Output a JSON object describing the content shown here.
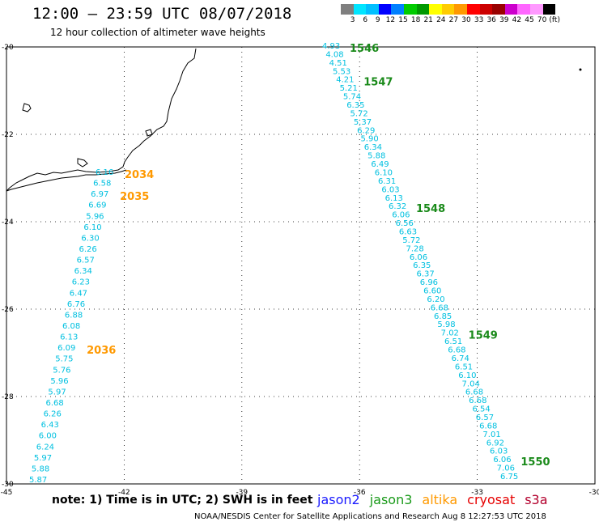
{
  "title": "12:00 – 23:59 UTC 08/07/2018",
  "subtitle": "12 hour collection of altimeter wave heights",
  "note": "note:  1) Time is in UTC;  2) SWH is in feet",
  "credit": "NOAA/NESDIS Center for Satellite Applications and Research     Aug  8 12:27:53 UTC 2018",
  "satellites": [
    {
      "name": "jason2",
      "color": "#1a1aff"
    },
    {
      "name": "jason3",
      "color": "#1a9a1a"
    },
    {
      "name": "altika",
      "color": "#ff9900"
    },
    {
      "name": "cryosat",
      "color": "#e60000"
    },
    {
      "name": "s3a",
      "color": "#b3002d"
    }
  ],
  "legend": {
    "colors": [
      "#7f7f7f",
      "#00e5ff",
      "#00bfff",
      "#0000ff",
      "#0080ff",
      "#00cc00",
      "#009900",
      "#ffff00",
      "#ffcc00",
      "#ff9900",
      "#ff0000",
      "#cc0000",
      "#990000",
      "#cc00cc",
      "#ff66ff",
      "#ff99ff",
      "#000000"
    ],
    "labels": [
      "3",
      "6",
      "9",
      "12",
      "15",
      "18",
      "21",
      "24",
      "27",
      "30",
      "33",
      "36",
      "39",
      "42",
      "45",
      "70",
      "(ft)"
    ]
  },
  "axes": {
    "lon_ticks": [
      -45,
      -42,
      -39,
      -36,
      -33,
      -30
    ],
    "lat_ticks": [
      -20,
      -22,
      -24,
      -26,
      -28,
      -30
    ]
  },
  "colors": {
    "swh_text": "#00c0e0",
    "jason3_label": "#1a8a1a",
    "altika_label": "#ff9900"
  },
  "tracks": {
    "west": {
      "satellite": "altika",
      "values": [
        "6.16",
        "6.58",
        "6.97",
        "6.69",
        "5.96",
        "6.10",
        "6.30",
        "6.26",
        "6.57",
        "6.34",
        "6.23",
        "6.47",
        "6.76",
        "6.88",
        "6.08",
        "6.13",
        "6.09",
        "5.75",
        "5.76",
        "5.96",
        "5.97",
        "6.68",
        "6.26",
        "6.43",
        "6.00",
        "6.24",
        "5.97",
        "5.88",
        "5.87"
      ],
      "times": [
        {
          "label": "2034",
          "after_index": 0
        },
        {
          "label": "2035",
          "after_index": 2
        },
        {
          "label": "2036",
          "after_index": 16
        }
      ]
    },
    "east": {
      "satellite": "jason3",
      "values": [
        "4.93",
        "4.08",
        "4.51",
        "5.53",
        "4.21",
        "5.21",
        "5.74",
        "6.35",
        "5.72",
        "5.37",
        "6.29",
        "5.90",
        "6.34",
        "5.88",
        "6.49",
        "6.10",
        "6.31",
        "6.03",
        "6.13",
        "6.32",
        "6.06",
        "6.56",
        "6.63",
        "5.72",
        "7.28",
        "6.06",
        "6.35",
        "6.37",
        "6.96",
        "6.60",
        "6.20",
        "6.68",
        "6.85",
        "5.98",
        "7.02",
        "6.51",
        "6.68",
        "6.74",
        "6.51",
        "6.10",
        "7.04",
        "6.68",
        "6.68",
        "6.54",
        "6.57",
        "6.68",
        "7.01",
        "6.92",
        "6.03",
        "6.06",
        "7.06",
        "6.75"
      ],
      "times": [
        {
          "label": "1546",
          "after_index": 0
        },
        {
          "label": "1547",
          "after_index": 4
        },
        {
          "label": "1548",
          "after_index": 19
        },
        {
          "label": "1549",
          "after_index": 34
        },
        {
          "label": "1550",
          "after_index": 49
        }
      ]
    }
  }
}
